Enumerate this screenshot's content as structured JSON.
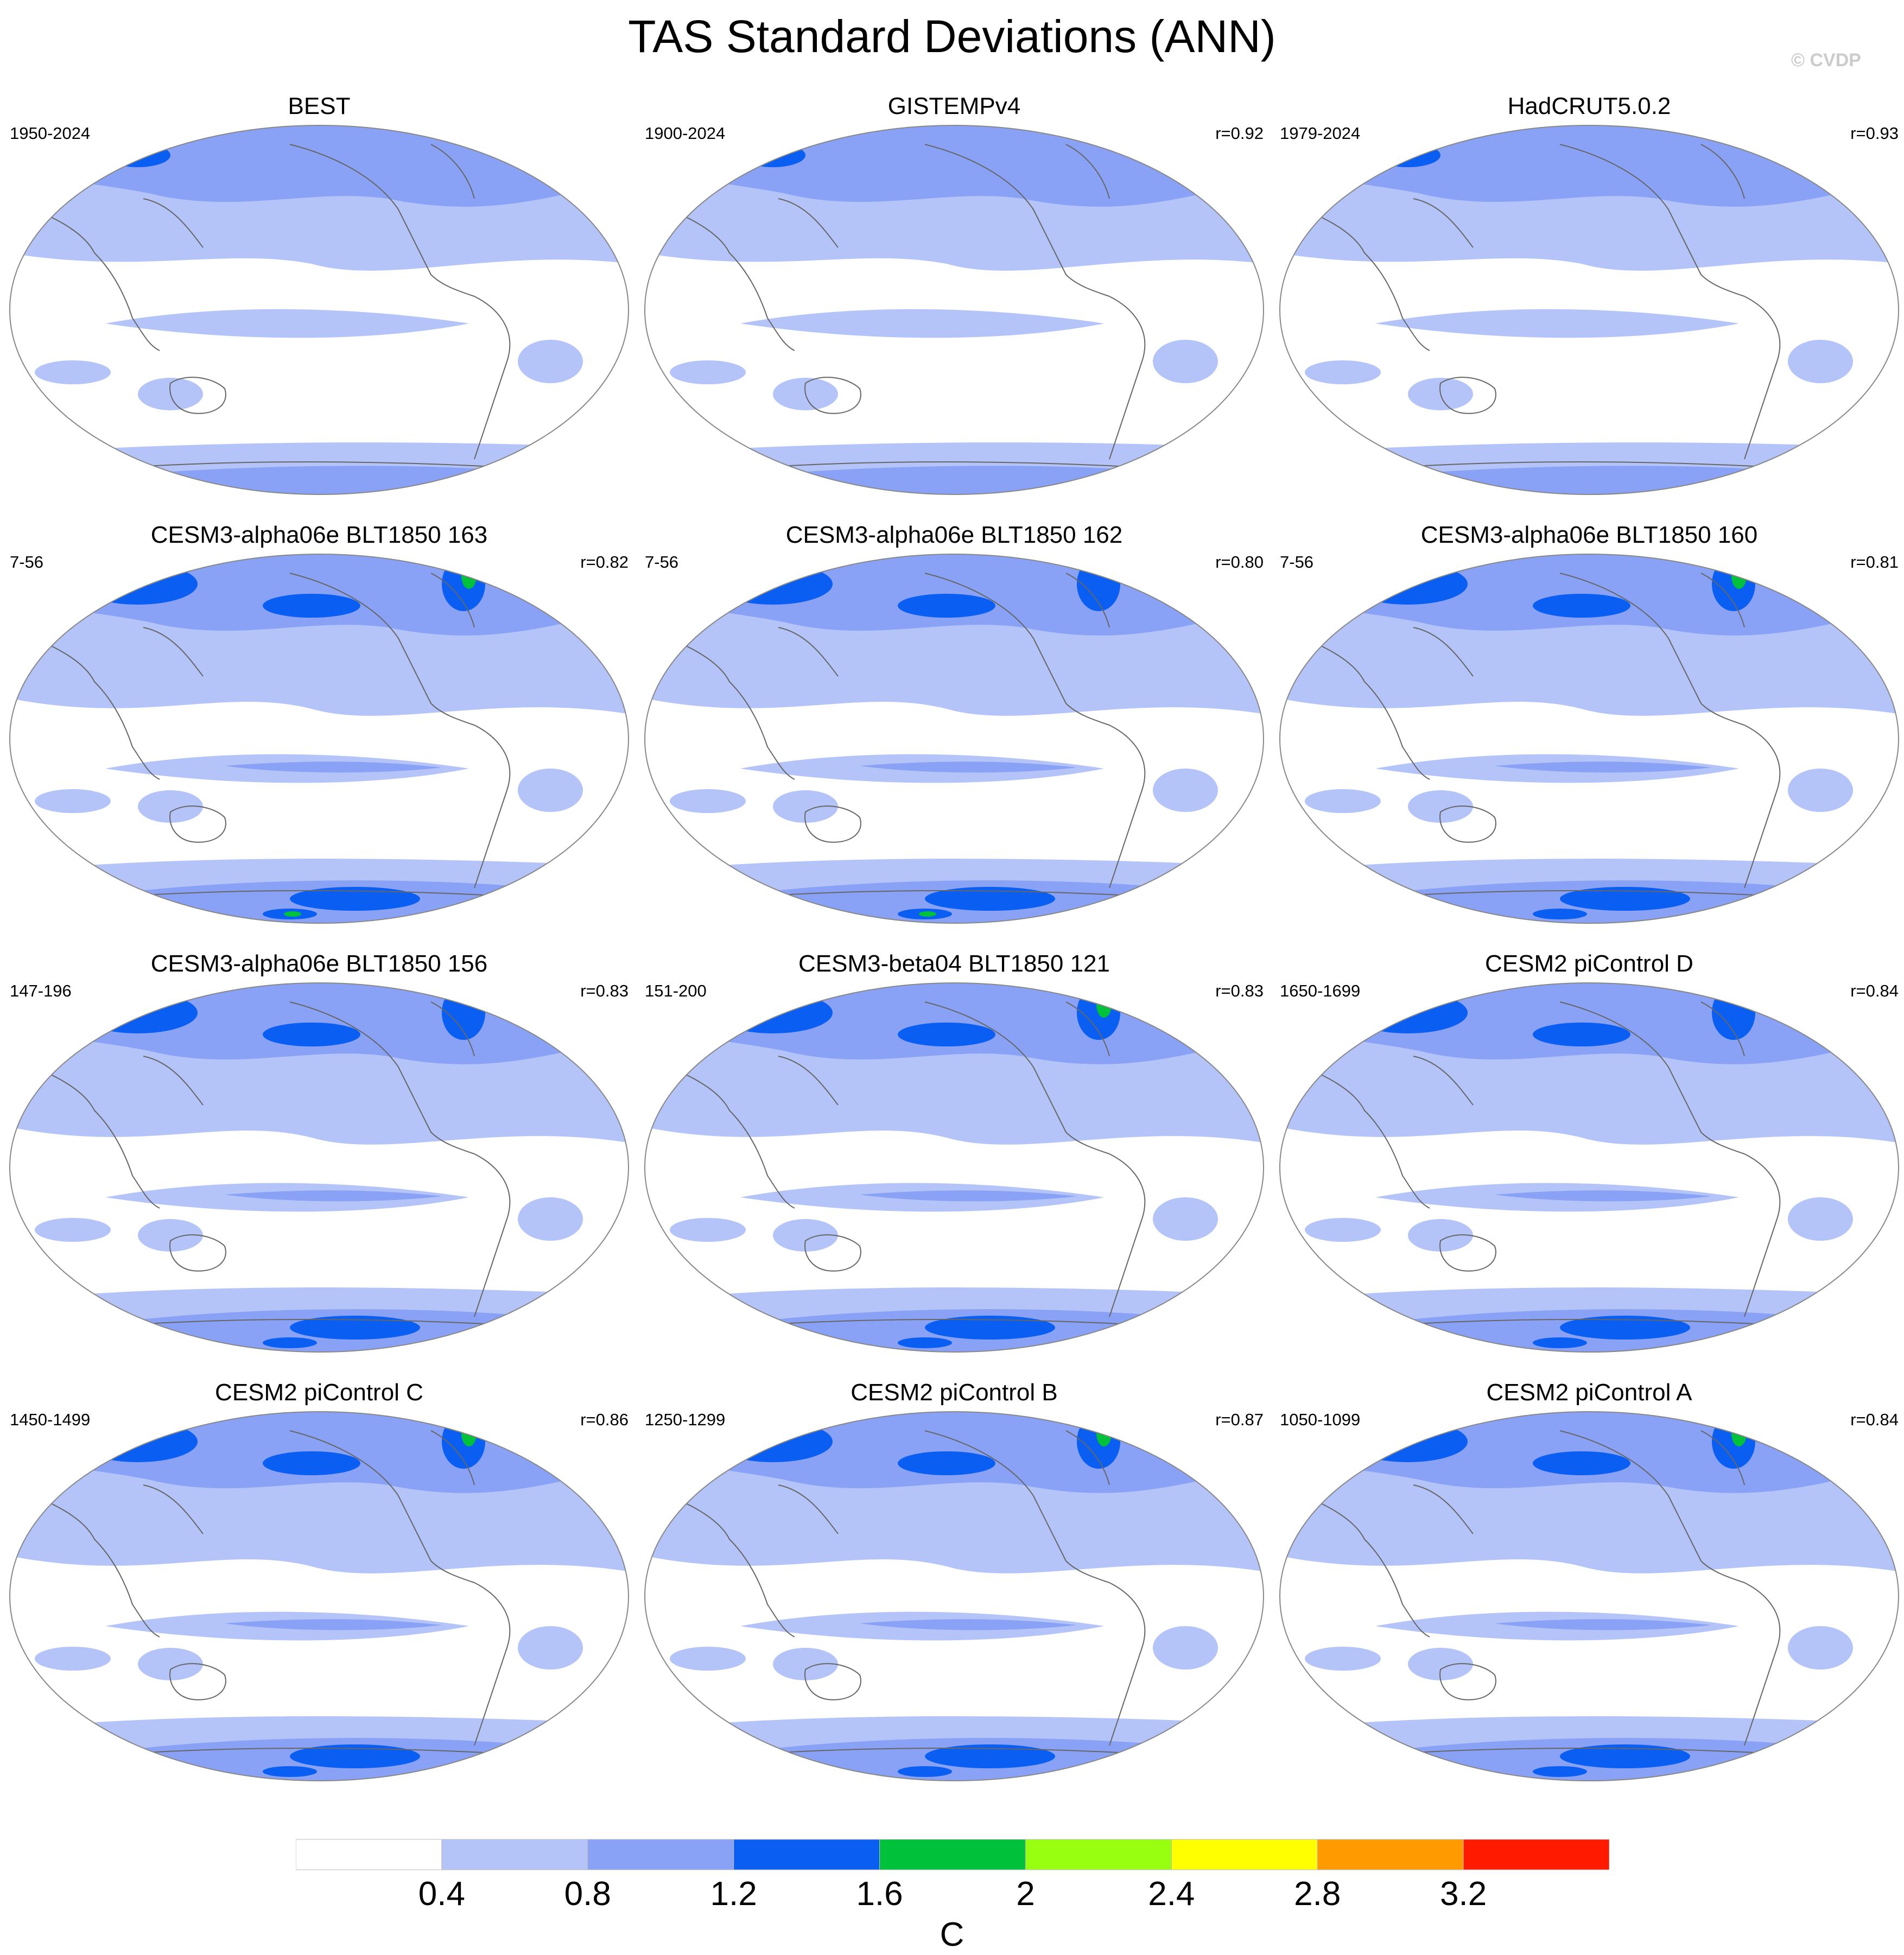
{
  "title": "TAS Standard Deviations (ANN)",
  "watermark": "© CVDP",
  "panels": [
    {
      "title": "BEST",
      "years": "1950-2024",
      "r": ""
    },
    {
      "title": "GISTEMPv4",
      "years": "1900-2024",
      "r": "r=0.92"
    },
    {
      "title": "HadCRUT5.0.2",
      "years": "1979-2024",
      "r": "r=0.93"
    },
    {
      "title": "CESM3-alpha06e BLT1850 163",
      "years": "7-56",
      "r": "r=0.82"
    },
    {
      "title": "CESM3-alpha06e BLT1850 162",
      "years": "7-56",
      "r": "r=0.80"
    },
    {
      "title": "CESM3-alpha06e BLT1850 160",
      "years": "7-56",
      "r": "r=0.81"
    },
    {
      "title": "CESM3-alpha06e BLT1850 156",
      "years": "147-196",
      "r": "r=0.83"
    },
    {
      "title": "CESM3-beta04 BLT1850 121",
      "years": "151-200",
      "r": "r=0.83"
    },
    {
      "title": "CESM2 piControl D",
      "years": "1650-1699",
      "r": "r=0.84"
    },
    {
      "title": "CESM2 piControl C",
      "years": "1450-1499",
      "r": "r=0.86"
    },
    {
      "title": "CESM2 piControl B",
      "years": "1250-1299",
      "r": "r=0.87"
    },
    {
      "title": "CESM2 piControl A",
      "years": "1050-1099",
      "r": "r=0.84"
    }
  ],
  "colorbar": {
    "units": "C",
    "labels": [
      "0.4",
      "0.8",
      "1.2",
      "1.6",
      "2",
      "2.4",
      "2.8",
      "3.2"
    ],
    "colors": [
      "#ffffff",
      "#b4c4f8",
      "#8aa2f6",
      "#0a5ff2",
      "#00c23a",
      "#98ff10",
      "#ffff00",
      "#ff9a00",
      "#ff1a00"
    ]
  },
  "map_colors": {
    "ocean_bg": "#ffffff",
    "level1": "#b4c4f8",
    "level2": "#8aa2f6",
    "level3": "#0a5ff2",
    "level4": "#00c23a",
    "level5": "#98ff10",
    "coast": "#666666"
  }
}
